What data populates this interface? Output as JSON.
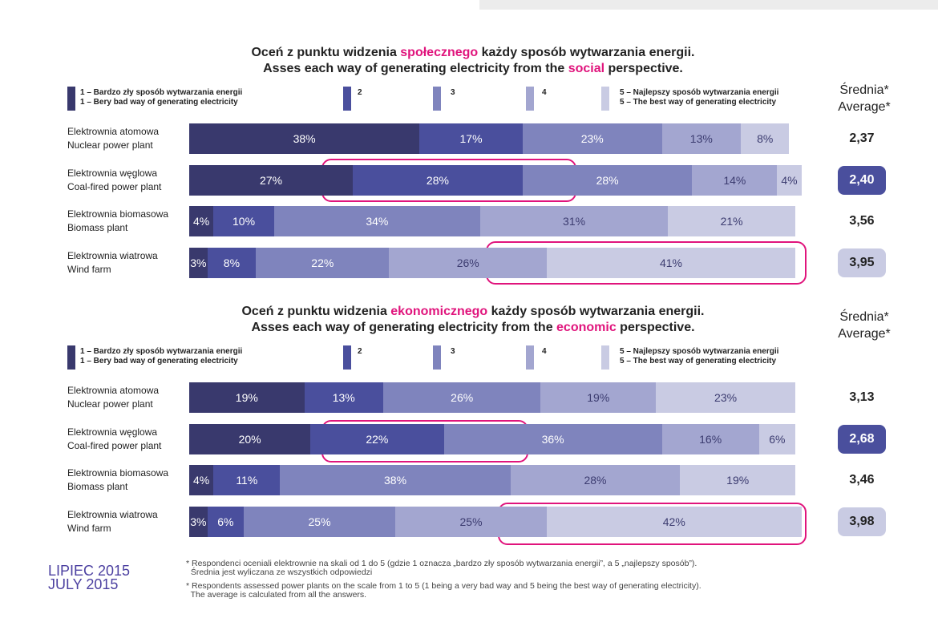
{
  "chart_data": [
    {
      "type": "bar",
      "orientation": "horizontal",
      "stacked": true,
      "title": [
        [
          "Oceń z punktu widzenia ",
          "społecznego",
          " każdy sposób wytwarzania energii."
        ],
        [
          "Asses each way of generating electricity from the ",
          "social",
          " perspective."
        ]
      ],
      "categories": [
        "Elektrownia atomowa\nNuclear power plant",
        "Elektrownia węglowa\nCoal-fired power plant",
        "Elektrownia biomasowa\nBiomass plant",
        "Elektrownia wiatrowa\nWind farm"
      ],
      "xlim": [
        0,
        100
      ],
      "series": [
        {
          "name": "1 – Bardzo zły sposób wytwarzania energii\n1 – Bery bad way of generating electricity",
          "color": "#39396d",
          "values": [
            38,
            27,
            4,
            3
          ],
          "value_labels": [
            "38%",
            "27%",
            "4%",
            "3%"
          ]
        },
        {
          "name": "2",
          "color": "#4a4f9d",
          "values": [
            17,
            28,
            10,
            8
          ],
          "value_labels": [
            "17%",
            "28%",
            "10%",
            "8%"
          ]
        },
        {
          "name": "3",
          "color": "#7f84bd",
          "values": [
            23,
            28,
            34,
            22
          ],
          "value_labels": [
            "23%",
            "28%",
            "34%",
            "22%"
          ]
        },
        {
          "name": "4",
          "color": "#a3a6d0",
          "values": [
            13,
            14,
            31,
            26
          ],
          "value_labels": [
            "13%",
            "14%",
            "31%",
            "26%"
          ]
        },
        {
          "name": "5 – Najlepszy sposób wytwarzania energii\n5 – The best way of generating electricity",
          "color": "#c9cbe3",
          "values": [
            8,
            4,
            21,
            41
          ],
          "value_labels": [
            "8%",
            "4%",
            "21%",
            "41%"
          ]
        }
      ],
      "average_title": "Średnia*\nAverage*",
      "averages": [
        2.37,
        2.4,
        3.56,
        3.95
      ],
      "average_labels": [
        "2,37",
        "2,40",
        "3,56",
        "3,95"
      ],
      "average_colors": [
        null,
        "#4a4f9d",
        null,
        "#c9cbe3"
      ]
    },
    {
      "type": "bar",
      "orientation": "horizontal",
      "stacked": true,
      "title": [
        [
          "Oceń z punktu widzenia ",
          "ekonomicznego",
          " każdy sposób wytwarzania energii."
        ],
        [
          "Asses each way of generating electricity from the ",
          "economic",
          " perspective."
        ]
      ],
      "categories": [
        "Elektrownia atomowa\nNuclear power plant",
        "Elektrownia węglowa\nCoal-fired power plant",
        "Elektrownia biomasowa\nBiomass plant",
        "Elektrownia wiatrowa\nWind farm"
      ],
      "xlim": [
        0,
        100
      ],
      "series": [
        {
          "name": "1 – Bardzo zły sposób wytwarzania energii\n1 – Bery bad way of generating electricity",
          "color": "#39396d",
          "values": [
            19,
            20,
            4,
            3
          ],
          "value_labels": [
            "19%",
            "20%",
            "4%",
            "3%"
          ]
        },
        {
          "name": "2",
          "color": "#4a4f9d",
          "values": [
            13,
            22,
            11,
            6
          ],
          "value_labels": [
            "13%",
            "22%",
            "11%",
            "6%"
          ]
        },
        {
          "name": "3",
          "color": "#7f84bd",
          "values": [
            26,
            36,
            38,
            25
          ],
          "value_labels": [
            "26%",
            "36%",
            "38%",
            "25%"
          ]
        },
        {
          "name": "4",
          "color": "#a3a6d0",
          "values": [
            19,
            16,
            28,
            25
          ],
          "value_labels": [
            "19%",
            "16%",
            "28%",
            "25%"
          ]
        },
        {
          "name": "5 – Najlepszy sposób wytwarzania energii\n5 – The best way of generating electricity",
          "color": "#c9cbe3",
          "values": [
            23,
            6,
            19,
            42
          ],
          "value_labels": [
            "23%",
            "6%",
            "19%",
            "42%"
          ]
        }
      ],
      "average_title": "Średnia*\nAverage*",
      "averages": [
        3.13,
        2.68,
        3.46,
        3.98
      ],
      "average_labels": [
        "3,13",
        "2,68",
        "3,46",
        "3,98"
      ],
      "average_colors": [
        null,
        "#4a4f9d",
        null,
        "#c9cbe3"
      ]
    }
  ],
  "footnotes": [
    "* Respondenci oceniali elektrownie na skali od 1 do 5 (gdzie 1 oznacza „bardzo zły sposób wytwarzania energii”, a 5 „najlepszy sposób”).\n  Średnia jest wyliczana ze wszystkich odpowiedzi",
    "* Respondents assessed power plants on the scale from 1 to 5 (1 being a very bad way and 5 being the best way of generating electricity).\n  The average is calculated from all the answers."
  ],
  "date": "LIPIEC 2015\nJULY 2015"
}
